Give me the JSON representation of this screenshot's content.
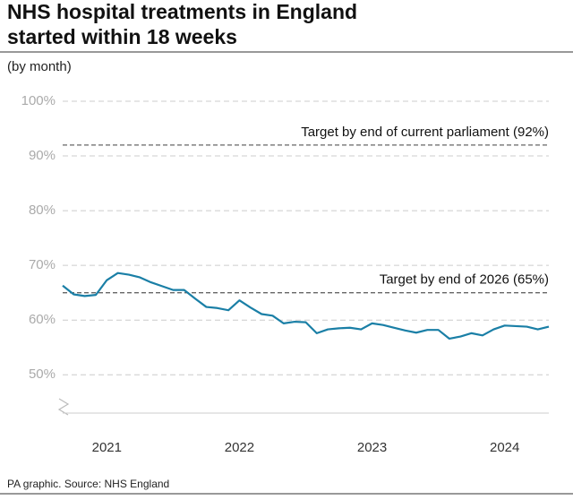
{
  "chart_data": {
    "type": "line",
    "title": "NHS hospital treatments in England",
    "subtitle_line": "started within 18 weeks",
    "subtitle": "(by month)",
    "source": "PA graphic. Source: NHS England",
    "x": [
      2020.917,
      2021.0,
      2021.083,
      2021.167,
      2021.25,
      2021.333,
      2021.417,
      2021.5,
      2021.583,
      2021.667,
      2021.75,
      2021.833,
      2021.917,
      2022.0,
      2022.083,
      2022.167,
      2022.25,
      2022.333,
      2022.417,
      2022.5,
      2022.583,
      2022.667,
      2022.75,
      2022.833,
      2022.917,
      2023.0,
      2023.083,
      2023.167,
      2023.25,
      2023.333,
      2023.417,
      2023.5,
      2023.583,
      2023.667,
      2023.75,
      2023.833,
      2023.917,
      2024.0,
      2024.083,
      2024.167,
      2024.25,
      2024.333,
      2024.417,
      2024.5,
      2024.583
    ],
    "series": [
      {
        "name": "Treatments started within 18 weeks",
        "color": "#1a7fa6",
        "values": [
          66.3,
          64.7,
          64.4,
          64.6,
          67.3,
          68.6,
          68.3,
          67.8,
          66.9,
          66.2,
          65.5,
          65.5,
          63.9,
          62.4,
          62.2,
          61.8,
          63.6,
          62.3,
          61.1,
          60.8,
          59.4,
          59.7,
          59.6,
          57.6,
          58.3,
          58.5,
          58.6,
          58.3,
          59.4,
          59.1,
          58.6,
          58.1,
          57.7,
          58.2,
          58.2,
          56.6,
          57.0,
          57.6,
          57.2,
          58.3,
          59.0,
          58.9,
          58.8,
          58.3,
          58.8
        ]
      }
    ],
    "xlim": [
      2020.917,
      2024.583
    ],
    "xticks": [
      {
        "value": 2021.25,
        "label": "2021"
      },
      {
        "value": 2022.25,
        "label": "2022"
      },
      {
        "value": 2023.25,
        "label": "2023"
      },
      {
        "value": 2024.25,
        "label": "2024"
      }
    ],
    "ylim": [
      43,
      100
    ],
    "yticks": [
      {
        "value": 50,
        "label": "50%"
      },
      {
        "value": 60,
        "label": "60%"
      },
      {
        "value": 70,
        "label": "70%"
      },
      {
        "value": 80,
        "label": "80%"
      },
      {
        "value": 90,
        "label": "90%"
      },
      {
        "value": 100,
        "label": "100%"
      }
    ],
    "reference_lines": [
      {
        "value": 92,
        "label": "Target by end of current parliament (92%)"
      },
      {
        "value": 65,
        "label": "Target by end of 2026 (65%)"
      }
    ],
    "grid": true
  }
}
